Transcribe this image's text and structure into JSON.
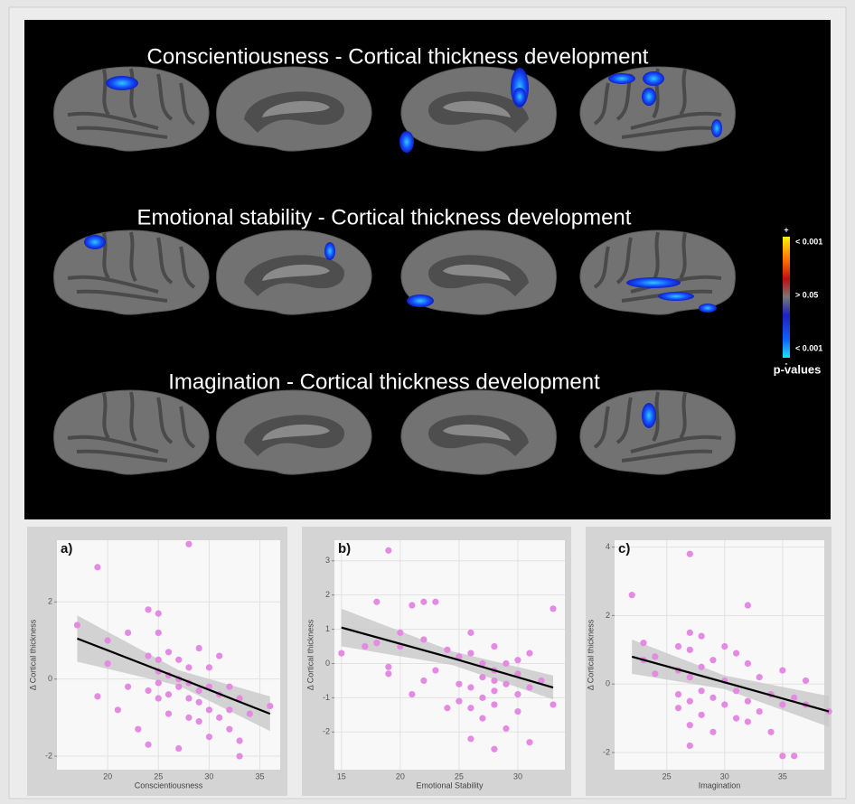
{
  "brain_panel": {
    "titles": [
      "Conscientiousness - Cortical thickness development",
      "Emotional stability - Cortical thickness development",
      "Imagination - Cortical thickness development"
    ],
    "colorbar": {
      "top": "+",
      "high": "< 0.001",
      "mid": "> 0.05",
      "low": "< 0.001",
      "bottom": "-",
      "title": "p-values"
    }
  },
  "chart_data": [
    {
      "type": "scatter",
      "label": "a)",
      "xlabel": "Conscientiousness",
      "ylabel": "Δ Cortical thickness",
      "color": "#e48ae2",
      "xlim": [
        15,
        37
      ],
      "xticks": [
        20,
        25,
        30,
        35
      ],
      "ylim": [
        -2.35,
        3.6
      ],
      "yticks": [
        -2,
        0,
        2
      ],
      "grid": true,
      "x": [
        17,
        19,
        19,
        20,
        20,
        21,
        22,
        22,
        23,
        24,
        24,
        24,
        24,
        25,
        25,
        25,
        25,
        25,
        25,
        26,
        26,
        26,
        26,
        27,
        27,
        27,
        27,
        28,
        28,
        28,
        28,
        28,
        29,
        29,
        29,
        29,
        30,
        30,
        30,
        30,
        31,
        31,
        31,
        32,
        32,
        32,
        33,
        33,
        33,
        34,
        36
      ],
      "values": [
        1.4,
        2.9,
        -0.45,
        0.4,
        1.0,
        -0.8,
        1.2,
        -0.2,
        -1.3,
        1.8,
        0.6,
        -0.3,
        -1.7,
        1.7,
        1.2,
        0.5,
        0.2,
        -0.1,
        -0.5,
        0.1,
        0.7,
        -0.4,
        -0.9,
        0.5,
        0,
        -0.2,
        -1.8,
        3.5,
        0.3,
        -0.1,
        -0.5,
        -1.0,
        0.8,
        -0.3,
        -0.6,
        -1.1,
        0.3,
        -0.2,
        -0.8,
        -1.5,
        0.6,
        -0.4,
        -1.0,
        -0.2,
        -0.8,
        -1.3,
        -0.5,
        -1.6,
        -2.0,
        -0.9,
        -0.7
      ],
      "fit": {
        "color": "#000000",
        "band_color": "#c8c8c8",
        "x": [
          17,
          27,
          36
        ],
        "values": [
          1.05,
          0.03,
          -0.9
        ],
        "lower": [
          0.45,
          -0.17,
          -1.35
        ],
        "upper": [
          1.65,
          0.23,
          -0.45
        ]
      }
    },
    {
      "type": "scatter",
      "label": "b)",
      "xlabel": "Emotional Stability",
      "ylabel": "Δ Cortical thickness",
      "color": "#e48ae2",
      "xlim": [
        14.4,
        34
      ],
      "xticks": [
        15,
        20,
        25,
        30
      ],
      "ylim": [
        -3.1,
        3.6
      ],
      "yticks": [
        -2,
        -1,
        0,
        1,
        2,
        3
      ],
      "grid": true,
      "x": [
        15,
        17,
        18,
        18,
        19,
        19,
        19,
        20,
        20,
        21,
        21,
        22,
        22,
        22,
        23,
        23,
        24,
        24,
        25,
        25,
        25,
        26,
        26,
        26,
        26,
        26,
        27,
        27,
        27,
        27,
        28,
        28,
        28,
        28,
        28,
        28,
        29,
        29,
        29,
        30,
        30,
        30,
        30,
        31,
        31,
        31,
        33,
        33,
        32
      ],
      "values": [
        0.3,
        0.5,
        1.8,
        0.6,
        3.3,
        -0.1,
        -0.3,
        0.5,
        0.9,
        1.7,
        -0.9,
        0.7,
        1.8,
        -0.5,
        1.8,
        -0.2,
        0.4,
        -1.3,
        0.2,
        -0.6,
        -1.1,
        0.9,
        0.3,
        -0.7,
        -1.3,
        -2.2,
        0,
        -0.4,
        -1.0,
        -1.6,
        0.5,
        -0.2,
        -0.5,
        -0.8,
        -1.2,
        -2.5,
        0,
        -0.6,
        -1.9,
        0.1,
        -0.3,
        -0.9,
        -1.4,
        0.3,
        -0.7,
        -2.3,
        1.6,
        -1.2,
        -0.5
      ],
      "fit": {
        "color": "#000000",
        "band_color": "#c8c8c8",
        "x": [
          15,
          24.5,
          33
        ],
        "values": [
          1.05,
          0.15,
          -0.7
        ],
        "lower": [
          0.5,
          -0.05,
          -1.05
        ],
        "upper": [
          1.6,
          0.35,
          -0.35
        ]
      }
    },
    {
      "type": "scatter",
      "label": "c)",
      "xlabel": "Imagination",
      "ylabel": "Δ Cortical thickness",
      "color": "#e48ae2",
      "xlim": [
        20.5,
        38.6
      ],
      "xticks": [
        25,
        30,
        35
      ],
      "ylim": [
        -2.5,
        4.2
      ],
      "yticks": [
        -2,
        0,
        2,
        4
      ],
      "grid": true,
      "x": [
        22,
        23,
        23,
        24,
        24,
        26,
        26,
        26,
        26,
        27,
        27,
        27,
        27,
        27,
        27,
        27,
        28,
        28,
        28,
        28,
        29,
        29,
        29,
        30,
        30,
        30,
        31,
        31,
        31,
        32,
        32,
        32,
        32,
        33,
        33,
        34,
        34,
        35,
        35,
        35,
        36,
        36,
        37,
        37,
        39
      ],
      "values": [
        2.6,
        1.2,
        0.7,
        0.3,
        0.8,
        1.1,
        0.4,
        -0.3,
        -0.7,
        3.8,
        1.5,
        1.0,
        0.2,
        -0.5,
        -1.2,
        -1.8,
        1.4,
        0.5,
        -0.2,
        -0.9,
        0.7,
        -0.4,
        -1.4,
        1.1,
        0.1,
        -0.6,
        0.9,
        -0.2,
        -1.0,
        2.3,
        0.6,
        -0.5,
        -1.1,
        0.2,
        -0.8,
        -0.3,
        -1.4,
        0.4,
        -0.6,
        -2.1,
        -0.4,
        -2.1,
        0.1,
        -0.6,
        -0.8
      ],
      "fit": {
        "color": "#000000",
        "band_color": "#c8c8c8",
        "x": [
          22,
          30,
          39
        ],
        "values": [
          0.8,
          0.05,
          -0.8
        ],
        "lower": [
          0.3,
          -0.15,
          -1.25
        ],
        "upper": [
          1.3,
          0.25,
          -0.35
        ]
      }
    }
  ]
}
